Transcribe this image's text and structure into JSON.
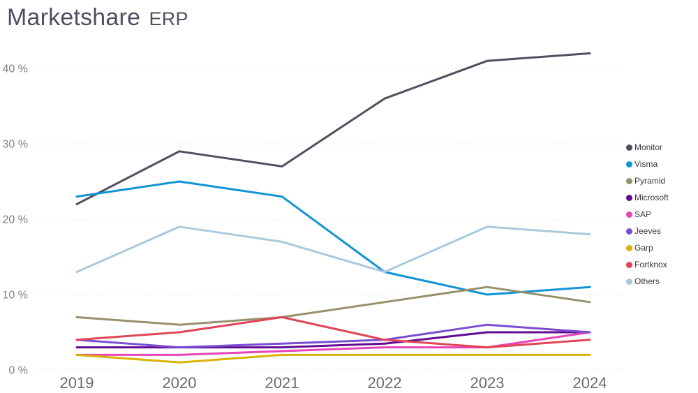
{
  "header": {
    "title_main": "Marketshare",
    "title_suffix": "ERP"
  },
  "chart_data": {
    "type": "line",
    "title": "Marketshare ERP",
    "categories": [
      "2019",
      "2020",
      "2021",
      "2022",
      "2023",
      "2024"
    ],
    "y_ticks": [
      0,
      10,
      20,
      30,
      40
    ],
    "y_tick_suffix": " %",
    "ylim": [
      0,
      44
    ],
    "grid": "horizontal-dotted",
    "legend_position": "right",
    "series": [
      {
        "name": "Monitor",
        "color": "#514f5e",
        "values": [
          22,
          29,
          27,
          36,
          41,
          42
        ]
      },
      {
        "name": "Visma",
        "color": "#1193d5",
        "values": [
          23,
          25,
          23,
          13,
          10,
          11
        ]
      },
      {
        "name": "Pyramid",
        "color": "#97906c",
        "values": [
          7,
          6,
          7,
          9,
          11,
          9
        ]
      },
      {
        "name": "Microsoft",
        "color": "#610c93",
        "values": [
          3,
          3,
          3,
          3.5,
          5,
          5
        ]
      },
      {
        "name": "SAP",
        "color": "#e845b8",
        "values": [
          2,
          2,
          2.5,
          3,
          3,
          5
        ]
      },
      {
        "name": "Jeeves",
        "color": "#7a4dd1",
        "values": [
          4,
          3,
          3.5,
          4,
          6,
          5
        ]
      },
      {
        "name": "Garp",
        "color": "#d8b305",
        "values": [
          2,
          1,
          2,
          2,
          2,
          2
        ]
      },
      {
        "name": "Fortknox",
        "color": "#e04556",
        "values": [
          4,
          5,
          7,
          4,
          3,
          4
        ]
      },
      {
        "name": "Others",
        "color": "#abc9dd",
        "values": [
          13,
          19,
          17,
          13,
          19,
          18
        ]
      }
    ]
  }
}
